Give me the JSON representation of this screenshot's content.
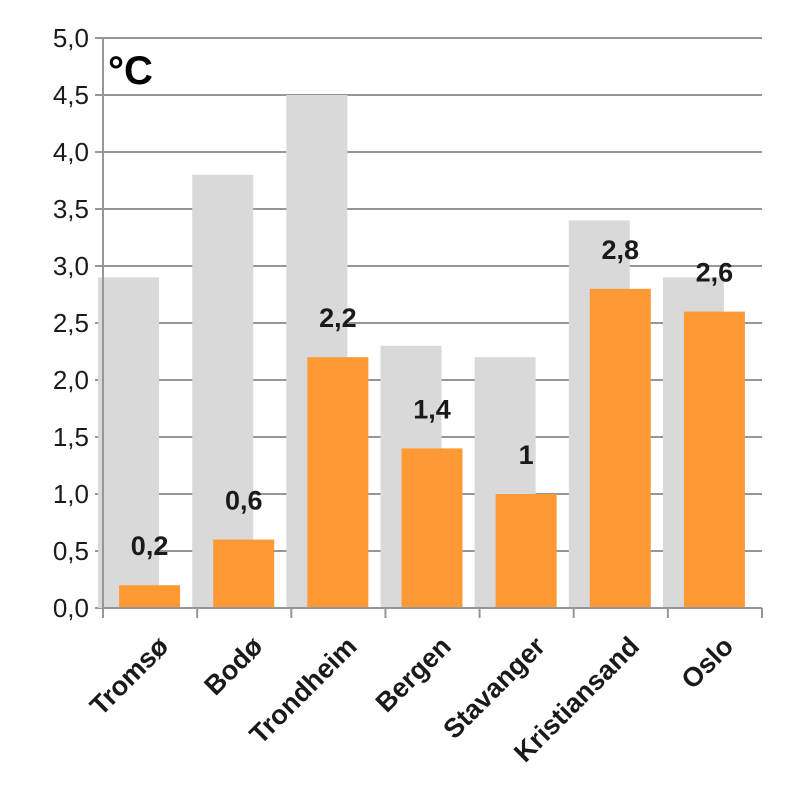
{
  "chart_data": {
    "type": "bar",
    "unit_label": "°C",
    "categories": [
      "Tromsø",
      "Bodø",
      "Trondheim",
      "Bergen",
      "Stavanger",
      "Kristiansand",
      "Oslo"
    ],
    "series": [
      {
        "values": [
          2.9,
          3.8,
          4.5,
          2.3,
          2.2,
          3.4,
          2.9
        ],
        "color": "#d9d9d9"
      },
      {
        "values": [
          0.2,
          0.6,
          2.2,
          1.4,
          1.0,
          2.8,
          2.6
        ],
        "color": "#ff9933"
      }
    ],
    "data_labels": [
      "0,2",
      "0,6",
      "2,2",
      "1,4",
      "1",
      "2,8",
      "2,6"
    ],
    "y_ticks": [
      "0,0",
      "0,5",
      "1,0",
      "1,5",
      "2,0",
      "2,5",
      "3,0",
      "3,5",
      "4,0",
      "4,5",
      "5,0"
    ],
    "ylim": [
      0,
      5
    ],
    "grid": true,
    "gridline_color": "#969696"
  }
}
